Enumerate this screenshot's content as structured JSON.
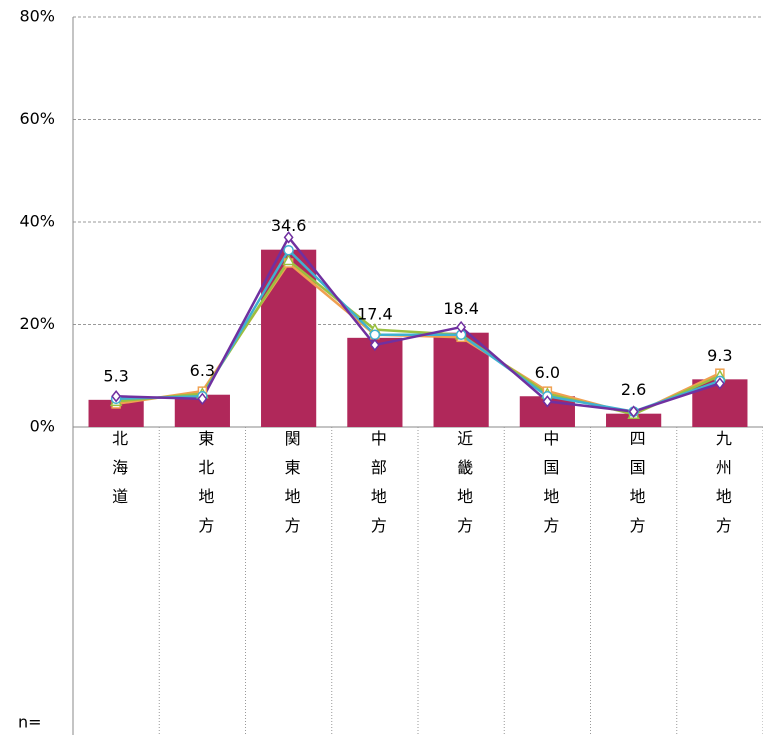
{
  "chart_data": {
    "type": "bar",
    "categories": [
      "北海道",
      "東北地方",
      "関東地方",
      "中部地方",
      "近畿地方",
      "中国地方",
      "四国地方",
      "九州地方"
    ],
    "values": [
      5.3,
      6.3,
      34.6,
      17.4,
      18.4,
      6.0,
      2.6,
      9.3
    ],
    "value_labels": [
      "5.3",
      "6.3",
      "34.6",
      "17.4",
      "18.4",
      "6.0",
      "2.6",
      "9.3"
    ],
    "color": "#b0285a",
    "series": [
      {
        "color": "#f0a050",
        "marker": "square",
        "values": [
          4.5,
          7,
          32,
          18,
          17.5,
          7,
          2.5,
          10.5
        ]
      },
      {
        "color": "#9ac040",
        "marker": "triangle",
        "values": [
          5,
          6.5,
          32.5,
          19,
          18,
          6.5,
          2.5,
          10
        ]
      },
      {
        "color": "#40b0d0",
        "marker": "circle",
        "values": [
          5.5,
          6,
          34.5,
          18,
          18,
          6,
          3,
          9
        ]
      },
      {
        "color": "#7030a0",
        "marker": "diamond",
        "values": [
          6,
          5.5,
          37,
          16,
          19.5,
          5,
          3,
          8.5
        ]
      }
    ],
    "ylim": [
      0,
      80
    ],
    "yticks": [
      {
        "value": 0,
        "label": "0%"
      },
      {
        "value": 20,
        "label": "20%"
      },
      {
        "value": 40,
        "label": "40%"
      },
      {
        "value": 60,
        "label": "60%"
      },
      {
        "value": 80,
        "label": "80%"
      }
    ],
    "grid": true,
    "annotation": "n="
  }
}
